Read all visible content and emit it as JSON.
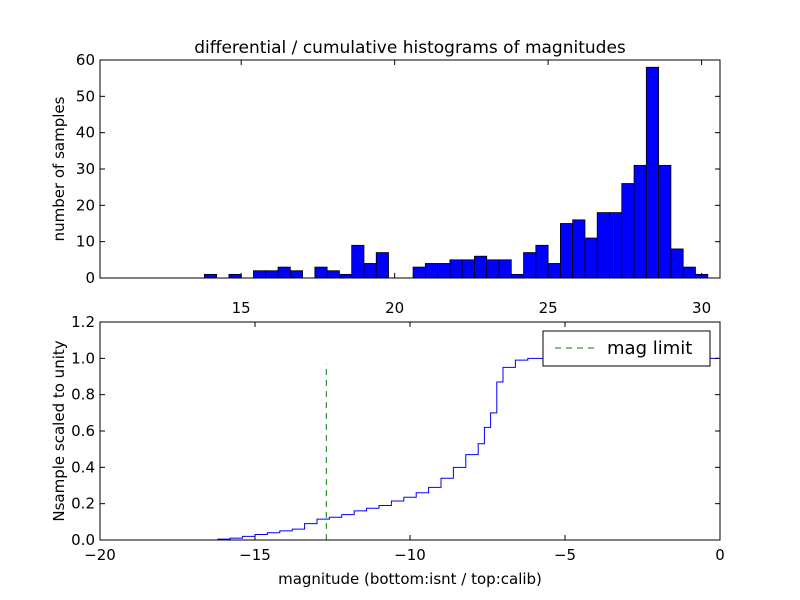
{
  "title": "differential / cumulative histograms of magnitudes",
  "colors": {
    "bar": "#0000ff",
    "step": "#0000ff",
    "limit": "#008000",
    "frame": "#000000"
  },
  "chart_data": [
    {
      "type": "bar",
      "title": "differential / cumulative histograms of magnitudes",
      "ylabel": "number of samples",
      "xlabel": "",
      "xlim": [
        10.4,
        30.6
      ],
      "ylim": [
        0,
        60
      ],
      "x_axis_position": "top-and-bottom",
      "xticks": [
        15,
        20,
        25,
        30
      ],
      "yticks": [
        0,
        10,
        20,
        30,
        40,
        50,
        60
      ],
      "grid": false,
      "bin_width": 0.4,
      "bins": [
        {
          "x": 13.8,
          "y": 1
        },
        {
          "x": 14.6,
          "y": 1
        },
        {
          "x": 15.4,
          "y": 2
        },
        {
          "x": 15.8,
          "y": 2
        },
        {
          "x": 16.2,
          "y": 3
        },
        {
          "x": 16.6,
          "y": 2
        },
        {
          "x": 17.4,
          "y": 3
        },
        {
          "x": 17.8,
          "y": 2
        },
        {
          "x": 18.2,
          "y": 1
        },
        {
          "x": 18.6,
          "y": 9
        },
        {
          "x": 19.0,
          "y": 4
        },
        {
          "x": 19.4,
          "y": 7
        },
        {
          "x": 20.6,
          "y": 3
        },
        {
          "x": 21.0,
          "y": 4
        },
        {
          "x": 21.4,
          "y": 4
        },
        {
          "x": 21.8,
          "y": 5
        },
        {
          "x": 22.2,
          "y": 5
        },
        {
          "x": 22.6,
          "y": 6
        },
        {
          "x": 23.0,
          "y": 5
        },
        {
          "x": 23.4,
          "y": 5
        },
        {
          "x": 23.8,
          "y": 1
        },
        {
          "x": 24.2,
          "y": 7
        },
        {
          "x": 24.6,
          "y": 9
        },
        {
          "x": 25.0,
          "y": 4
        },
        {
          "x": 25.4,
          "y": 15
        },
        {
          "x": 25.8,
          "y": 16
        },
        {
          "x": 26.2,
          "y": 11
        },
        {
          "x": 26.6,
          "y": 18
        },
        {
          "x": 27.0,
          "y": 18
        },
        {
          "x": 27.4,
          "y": 26
        },
        {
          "x": 27.8,
          "y": 31
        },
        {
          "x": 28.2,
          "y": 58
        },
        {
          "x": 28.6,
          "y": 31
        },
        {
          "x": 29.0,
          "y": 8
        },
        {
          "x": 29.4,
          "y": 3
        },
        {
          "x": 29.8,
          "y": 1
        }
      ]
    },
    {
      "type": "line",
      "step": true,
      "xlabel": "magnitude (bottom:isnt / top:calib)",
      "ylabel": "Nsample scaled to unity",
      "xlim": [
        -20,
        0
      ],
      "ylim": [
        0,
        1.2
      ],
      "xticks": [
        -20,
        -15,
        -10,
        -5,
        0
      ],
      "xtick_labels": [
        "−20",
        "−15",
        "−10",
        "−5",
        "0"
      ],
      "yticks": [
        0,
        0.2,
        0.4,
        0.6,
        0.8,
        1.0,
        1.2
      ],
      "ytick_labels": [
        "0.0",
        "0.2",
        "0.4",
        "0.6",
        "0.8",
        "1.0",
        "1.2"
      ],
      "grid": false,
      "legend_position": "top-right",
      "series": [
        {
          "name": "",
          "x": [
            -20,
            -16.2,
            -15.8,
            -15.4,
            -15.0,
            -14.6,
            -14.2,
            -13.8,
            -13.4,
            -13.0,
            -12.6,
            -12.2,
            -11.8,
            -11.4,
            -11.0,
            -10.6,
            -10.2,
            -9.8,
            -9.4,
            -9.0,
            -8.6,
            -8.2,
            -7.8,
            -7.6,
            -7.4,
            -7.2,
            -7.0,
            -6.6,
            -6.2,
            -0.02
          ],
          "y": [
            0.0,
            0.005,
            0.01,
            0.02,
            0.03,
            0.04,
            0.05,
            0.06,
            0.09,
            0.115,
            0.125,
            0.14,
            0.16,
            0.175,
            0.19,
            0.215,
            0.235,
            0.26,
            0.29,
            0.34,
            0.4,
            0.47,
            0.53,
            0.62,
            0.7,
            0.87,
            0.95,
            0.99,
            1.0,
            1.0
          ],
          "drop_to_zero_at": 0
        },
        {
          "name": "mag limit",
          "style": "dashed",
          "x": [
            -12.7,
            -12.7
          ],
          "y": [
            0.0,
            0.97
          ]
        }
      ]
    }
  ]
}
